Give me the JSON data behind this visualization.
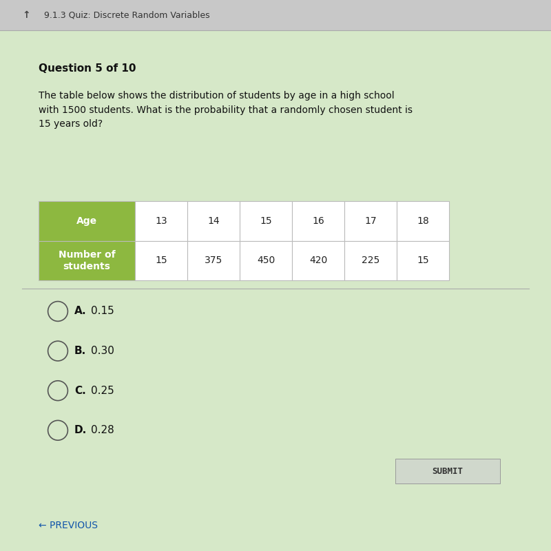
{
  "browser_bar_text": "9.1.3 Quiz: Discrete Random Variables",
  "question_label": "Question 5 of 10",
  "question_text": "The table below shows the distribution of students by age in a high school\nwith 1500 students. What is the probability that a randomly chosen student is\n15 years old?",
  "table_header": [
    "Age",
    "13",
    "14",
    "15",
    "16",
    "17",
    "18"
  ],
  "table_row_label": "Number of\nstudents",
  "table_row_values": [
    "15",
    "375",
    "450",
    "420",
    "225",
    "15"
  ],
  "header_bg_color": "#8db840",
  "header_text_color": "#ffffff",
  "row_label_bg_color": "#8db840",
  "row_label_text_color": "#ffffff",
  "cell_bg_color": "#ffffff",
  "cell_border_color": "#bbbbbb",
  "choices": [
    "A.  0.15",
    "B.  0.30",
    "C.  0.25",
    "D.  0.28"
  ],
  "choice_letters": [
    "A.",
    "B.",
    "C.",
    "D."
  ],
  "choice_values": [
    "0.15",
    "0.30",
    "0.25",
    "0.28"
  ],
  "submit_button_text": "SUBMIT",
  "previous_text": "← PREVIOUS",
  "bg_color": "#d6e8c8",
  "top_bar_color": "#c8c8c8",
  "fig_width": 8.0,
  "fig_height": 8.0
}
